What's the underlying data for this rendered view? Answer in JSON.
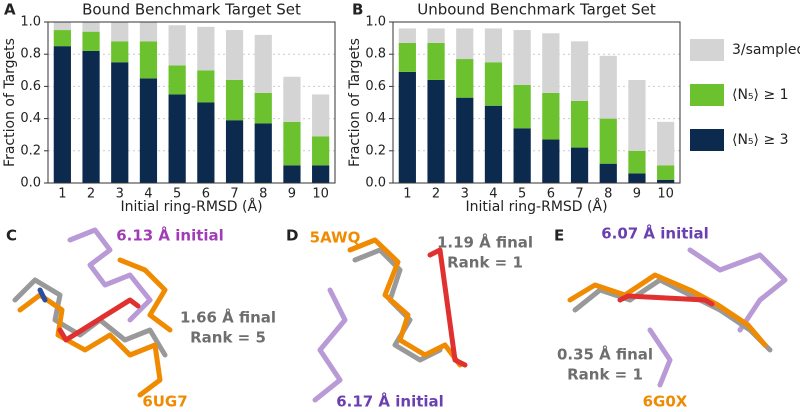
{
  "chart_data": [
    {
      "type": "bar",
      "stacked": true,
      "panel": "A",
      "title": "Bound Benchmark Target Set",
      "x_label": "Initial ring-RMSD (Å)",
      "y_label": "Fraction of Targets",
      "categories": [
        "1",
        "2",
        "3",
        "4",
        "5",
        "6",
        "7",
        "8",
        "9",
        "10"
      ],
      "series": [
        {
          "color": "#0c2a4d",
          "values": [
            0.85,
            0.82,
            0.75,
            0.65,
            0.55,
            0.5,
            0.39,
            0.37,
            0.11,
            0.11
          ]
        },
        {
          "color": "#6cc22e",
          "values": [
            0.1,
            0.12,
            0.13,
            0.23,
            0.18,
            0.2,
            0.25,
            0.19,
            0.27,
            0.18
          ]
        },
        {
          "color": "#d4d4d4",
          "values": [
            0.05,
            0.06,
            0.12,
            0.12,
            0.25,
            0.27,
            0.31,
            0.36,
            0.28,
            0.26
          ]
        }
      ],
      "ylim": [
        0,
        1
      ],
      "yticks": [
        {
          "value": 0,
          "label": "0.0"
        },
        0.2,
        0.4,
        0.6,
        0.8,
        {
          "value": 1,
          "label": "1.0"
        }
      ],
      "grid": true
    },
    {
      "type": "bar",
      "stacked": true,
      "panel": "B",
      "title": "Unbound Benchmark Target Set",
      "x_label": "Initial ring-RMSD (Å)",
      "y_label": "Fraction of Targets",
      "categories": [
        "1",
        "2",
        "3",
        "4",
        "5",
        "6",
        "7",
        "8",
        "9",
        "10"
      ],
      "series": [
        {
          "name": "⟨N₅⟩ ≥ 3",
          "color": "#0c2a4d",
          "values": [
            0.69,
            0.64,
            0.53,
            0.48,
            0.34,
            0.27,
            0.22,
            0.12,
            0.06,
            0.02
          ]
        },
        {
          "name": "⟨N₅⟩ ≥ 1",
          "color": "#6cc22e",
          "values": [
            0.18,
            0.23,
            0.24,
            0.27,
            0.27,
            0.29,
            0.29,
            0.28,
            0.14,
            0.09
          ]
        },
        {
          "name": "3/sampled",
          "color": "#d4d4d4",
          "values": [
            0.09,
            0.09,
            0.19,
            0.21,
            0.34,
            0.37,
            0.37,
            0.39,
            0.44,
            0.27
          ]
        }
      ],
      "ylim": [
        0,
        1
      ],
      "yticks": [
        {
          "value": 0,
          "label": "0.0"
        },
        0.2,
        0.4,
        0.6,
        0.8,
        {
          "value": 1,
          "label": "1.0"
        }
      ],
      "grid": true,
      "legend": "right"
    }
  ],
  "panels": [
    {
      "label": "C",
      "texts": [
        "6.13 Å initial",
        "1.66 Å final",
        "Rank = 5",
        "6UG7"
      ]
    },
    {
      "label": "D",
      "texts": [
        "5AWQ",
        "1.19 Å final",
        "Rank = 1",
        "6.17 Å initial"
      ]
    },
    {
      "label": "E",
      "texts": [
        "6.07 Å initial",
        "0.35 Å final",
        "Rank = 1",
        "6G0X"
      ]
    }
  ]
}
